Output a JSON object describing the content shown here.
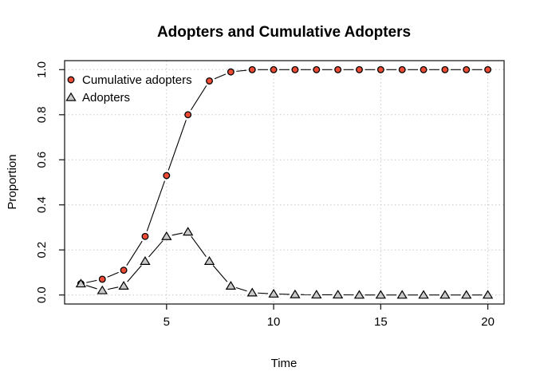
{
  "title": "Adopters and Cumulative Adopters",
  "chart_data": {
    "type": "line",
    "title": "Adopters and Cumulative Adopters",
    "xlabel": "Time",
    "ylabel": "Proportion",
    "x": [
      1,
      2,
      3,
      4,
      5,
      6,
      7,
      8,
      9,
      10,
      11,
      12,
      13,
      14,
      15,
      16,
      17,
      18,
      19,
      20
    ],
    "series": [
      {
        "name": "Cumulative adopters",
        "marker": "circle",
        "marker_fill": "#ee4c35",
        "marker_stroke": "#000000",
        "line_style": "solid-with-gaps",
        "values": [
          0.05,
          0.07,
          0.11,
          0.26,
          0.53,
          0.8,
          0.95,
          0.99,
          1.0,
          1.0,
          1.0,
          1.0,
          1.0,
          1.0,
          1.0,
          1.0,
          1.0,
          1.0,
          1.0,
          1.0
        ]
      },
      {
        "name": "Adopters",
        "marker": "triangle",
        "marker_fill": "#c9c9c9",
        "marker_stroke": "#000000",
        "line_style": "solid-with-gaps",
        "values": [
          0.05,
          0.02,
          0.04,
          0.15,
          0.26,
          0.28,
          0.15,
          0.04,
          0.01,
          0.005,
          0.002,
          0.001,
          0.001,
          0.0,
          0.0,
          0.0,
          0.0,
          0.0,
          0.0,
          0.0
        ]
      }
    ],
    "x_ticks": [
      5,
      10,
      15,
      20
    ],
    "y_ticks": [
      "0.0",
      "0.2",
      "0.4",
      "0.6",
      "0.8",
      "1.0"
    ],
    "xlim": [
      0.24,
      20.76
    ],
    "ylim": [
      -0.04,
      1.04
    ],
    "grid": "dotted",
    "grid_color": "#c9c9c9",
    "axis_color": "#1f1f1f",
    "line_color": "#000000",
    "legend_position": "top-left",
    "legend": [
      "Cumulative adopters",
      "Adopters"
    ]
  }
}
